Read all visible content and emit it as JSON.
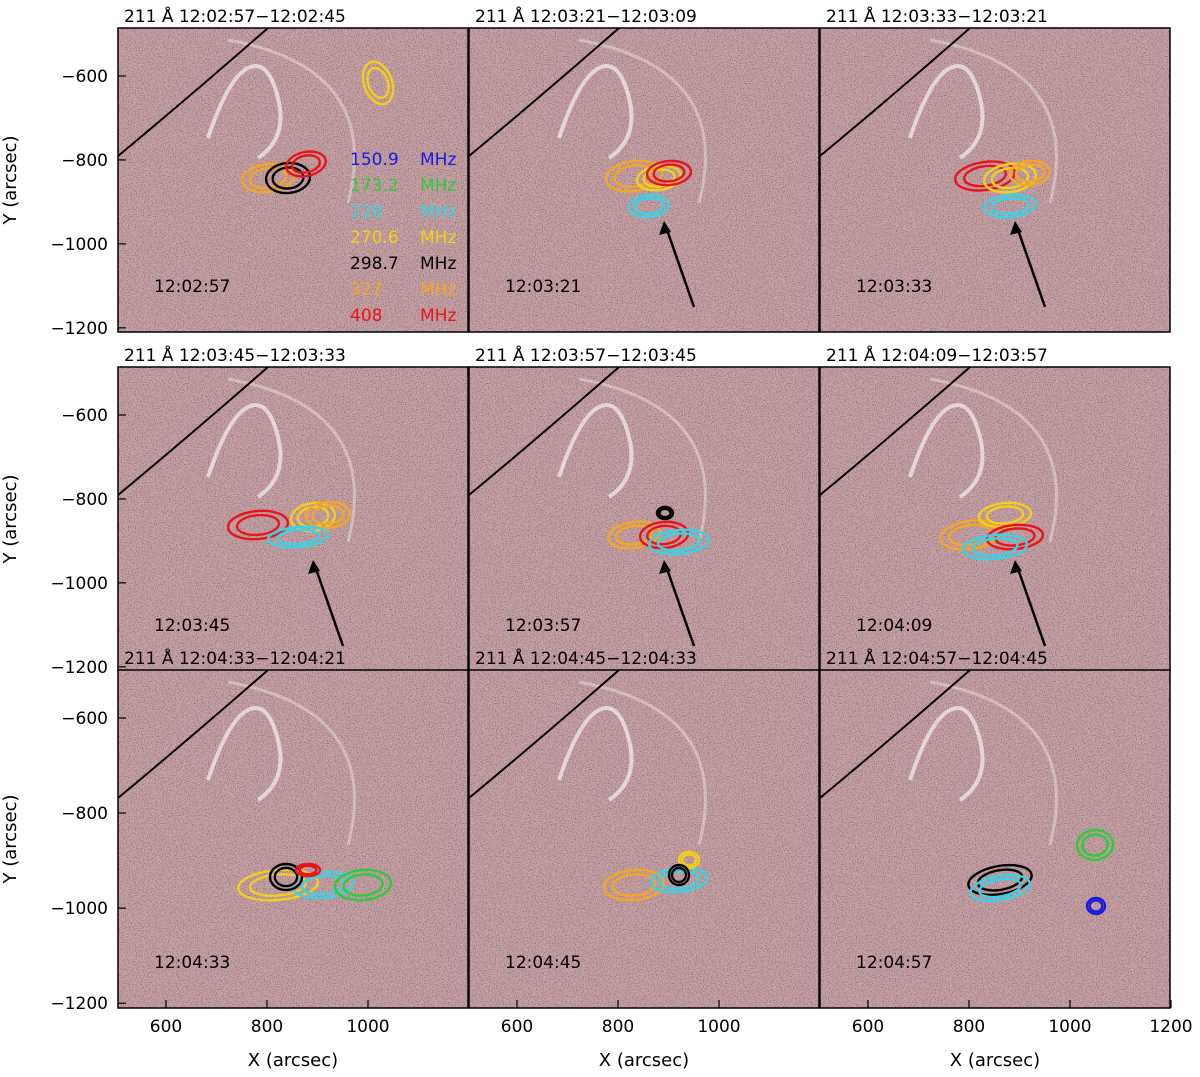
{
  "figure": {
    "x_axis_label": "X (arcsec)",
    "y_axis_label": "Y (arcsec)",
    "x_ticks": [
      "600",
      "800",
      "1000",
      "1200"
    ],
    "y_ticks": [
      "−600",
      "−800",
      "−1000",
      "−1200"
    ],
    "colors": {
      "background": "#c59ea3",
      "limb": "#000000",
      "arrow": "#000000"
    },
    "legend": [
      {
        "freq": "150.9",
        "unit": "MHz",
        "color": "#1a1adc"
      },
      {
        "freq": "173.2",
        "unit": "MHz",
        "color": "#2ecc3a"
      },
      {
        "freq": "228",
        "unit": "MHz",
        "color": "#36d4e6"
      },
      {
        "freq": "270.6",
        "unit": "MHz",
        "color": "#f2cf1a"
      },
      {
        "freq": "298.7",
        "unit": "MHz",
        "color": "#000000"
      },
      {
        "freq": "327",
        "unit": "MHz",
        "color": "#f5a623"
      },
      {
        "freq": "408",
        "unit": "MHz",
        "color": "#e8141b"
      }
    ],
    "panels": [
      {
        "title": "211  Å  12:02:57−12:02:45",
        "time": "12:02:57",
        "arrow": false
      },
      {
        "title": "211  Å  12:03:21−12:03:09",
        "time": "12:03:21",
        "arrow": true
      },
      {
        "title": "211  Å  12:03:33−12:03:21",
        "time": "12:03:33",
        "arrow": true
      },
      {
        "title": "211  Å  12:03:45−12:03:33",
        "time": "12:03:45",
        "arrow": true
      },
      {
        "title": "211  Å  12:03:57−12:03:45",
        "time": "12:03:57",
        "arrow": true
      },
      {
        "title": "211  Å  12:04:09−12:03:57",
        "time": "12:04:09",
        "arrow": true
      },
      {
        "title": "211  Å  12:04:33−12:04:21",
        "time": "12:04:33",
        "arrow": false
      },
      {
        "title": "211  Å  12:04:45−12:04:33",
        "time": "12:04:45",
        "arrow": false
      },
      {
        "title": "211  Å  12:04:57−12:04:45",
        "time": "12:04:57",
        "arrow": false
      }
    ]
  }
}
